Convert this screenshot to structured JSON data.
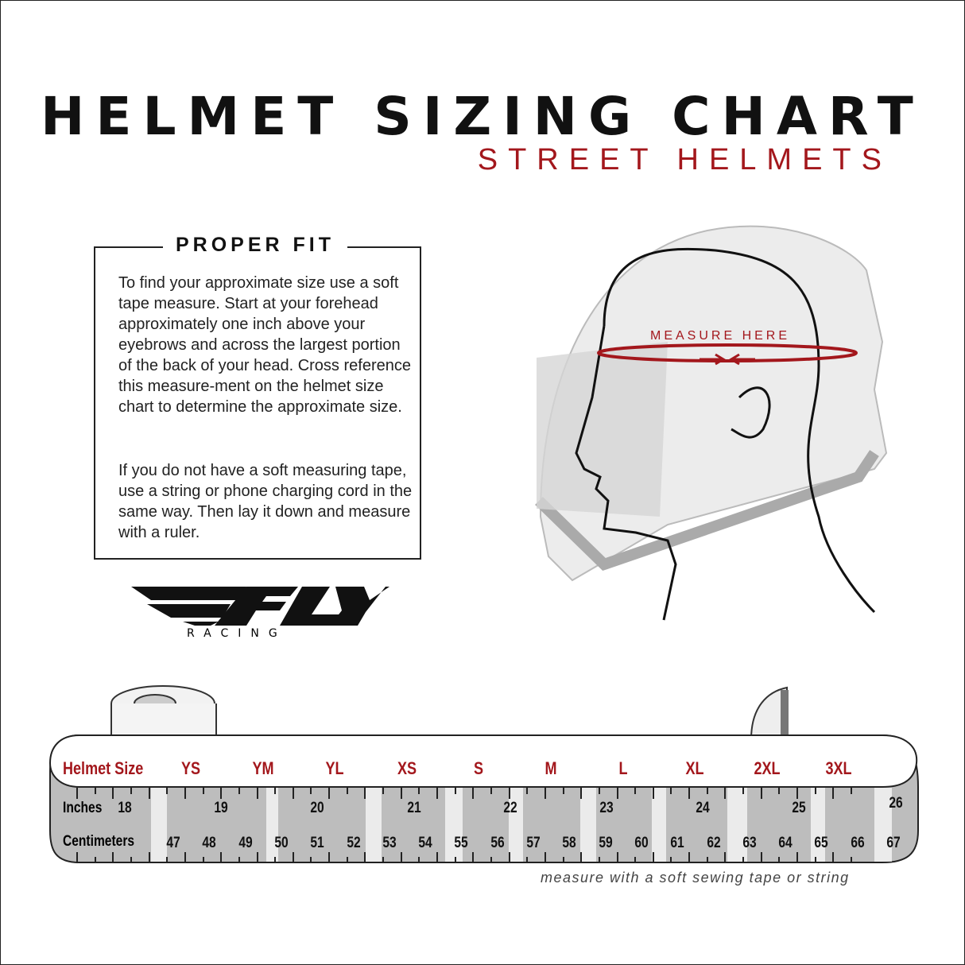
{
  "header": {
    "title": "HELMET SIZING CHART",
    "subtitle": "STREET HELMETS"
  },
  "proper_fit": {
    "heading": "PROPER FIT",
    "paragraph1": "To find your approximate size use a soft tape measure. Start at your forehead approximately one inch above your eyebrows and across the largest portion of the back of your head. Cross reference this measure-ment on the helmet size chart to determine the approximate size.",
    "paragraph2": "If you do not have a soft measuring tape, use a string or phone charging cord in the same way. Then lay it down and measure with a ruler."
  },
  "logo": {
    "brand": "FLY",
    "sub": "RACING"
  },
  "illustration": {
    "measure_label": "MEASURE HERE",
    "accent_color": "#a3171c"
  },
  "tape": {
    "row_labels": {
      "size": "Helmet Size",
      "inches": "Inches",
      "cm": "Centimeters"
    },
    "sizes": [
      "YS",
      "YM",
      "YL",
      "XS",
      "S",
      "M",
      "L",
      "XL",
      "2XL",
      "3XL"
    ],
    "inches": [
      "18",
      "19",
      "20",
      "21",
      "22",
      "23",
      "24",
      "25",
      "26"
    ],
    "centimeters": [
      "47",
      "48",
      "49",
      "50",
      "51",
      "52",
      "53",
      "54",
      "55",
      "56",
      "57",
      "58",
      "59",
      "60",
      "61",
      "62",
      "63",
      "64",
      "65",
      "66",
      "67"
    ],
    "caption": "measure with a soft sewing tape or string"
  }
}
